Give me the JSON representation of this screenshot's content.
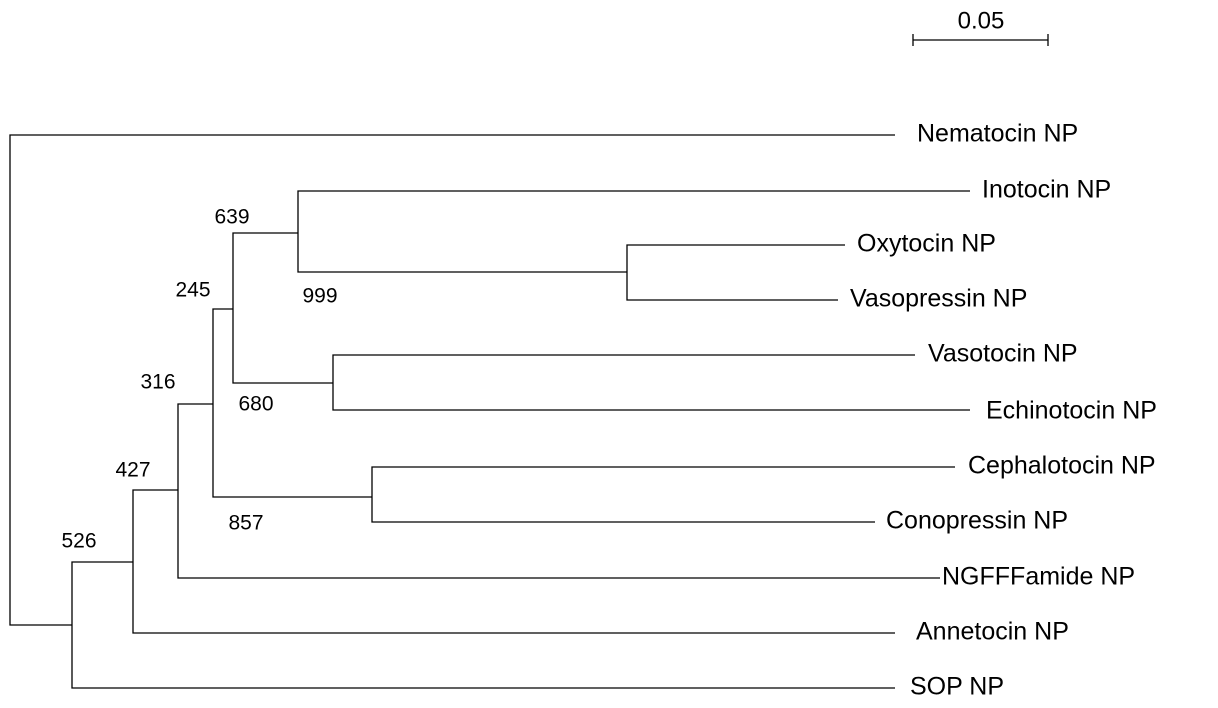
{
  "scale_bar": {
    "label": "0.05"
  },
  "leaves": [
    "Nematocin NP",
    "Inotocin NP",
    "Oxytocin NP",
    "Vasopressin NP",
    "Vasotocin NP",
    "Echinotocin NP",
    "Cephalotocin NP",
    "Conopressin NP",
    "NGFFFamide NP",
    "Annetocin NP",
    "SOP NP"
  ],
  "support_values": [
    "639",
    "999",
    "245",
    "680",
    "316",
    "857",
    "427",
    "526"
  ]
}
